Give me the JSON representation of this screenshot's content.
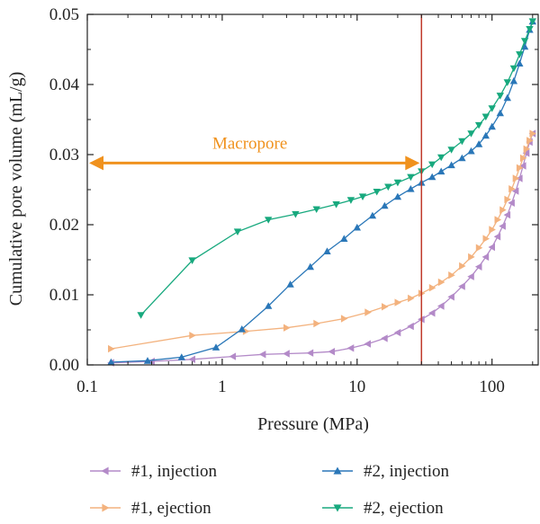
{
  "chart_data": {
    "type": "line",
    "title": "",
    "xlabel": "Pressure (MPa)",
    "ylabel": "Cumulative pore volume (mL/g)",
    "xscale": "log",
    "xlim": [
      0.1,
      220
    ],
    "ylim": [
      0,
      0.05
    ],
    "xticks": [
      0.1,
      1,
      10,
      100
    ],
    "xtick_labels": [
      "0.1",
      "1",
      "10",
      "100"
    ],
    "yticks": [
      0,
      0.01,
      0.02,
      0.03,
      0.04,
      0.05
    ],
    "ytick_labels": [
      "0.00",
      "0.01",
      "0.02",
      "0.03",
      "0.04",
      "0.05"
    ],
    "grid": false,
    "legend_position": "bottom",
    "reference_line": {
      "x": 30,
      "color": "#c0392b"
    },
    "annotation": {
      "text": "Macropore",
      "x_from": 0.1,
      "x_to": 30,
      "y": 0.0288,
      "color": "#f0921e"
    },
    "series": [
      {
        "name": "#1, injection",
        "color": "#b38ac8",
        "marker": "triangle-left",
        "x": [
          0.15,
          0.3,
          0.6,
          1.2,
          2.0,
          3.0,
          4.5,
          6.5,
          9.0,
          12.0,
          16.0,
          20.0,
          25.0,
          30.0,
          36.0,
          42.0,
          50.0,
          60.0,
          70.0,
          80.0,
          90.0,
          100.0,
          110.0,
          120.0,
          130.0,
          140.0,
          150.0,
          160.0,
          170.0,
          180.0,
          190.0,
          200.0
        ],
        "y": [
          0.0003,
          0.0005,
          0.0008,
          0.0012,
          0.0015,
          0.0016,
          0.0017,
          0.0019,
          0.0024,
          0.003,
          0.0038,
          0.0046,
          0.0055,
          0.0065,
          0.0074,
          0.0084,
          0.0097,
          0.0112,
          0.0126,
          0.014,
          0.0154,
          0.0168,
          0.0183,
          0.0198,
          0.0214,
          0.0231,
          0.0248,
          0.0266,
          0.0284,
          0.0302,
          0.0318,
          0.033
        ]
      },
      {
        "name": "#1, ejection",
        "color": "#f3b27e",
        "marker": "triangle-right",
        "x": [
          0.15,
          0.6,
          1.5,
          3.0,
          5.0,
          8.0,
          12.0,
          16.0,
          20.0,
          25.0,
          30.0,
          36.0,
          42.0,
          50.0,
          60.0,
          70.0,
          80.0,
          90.0,
          100.0,
          110.0,
          120.0,
          130.0,
          140.0,
          150.0,
          160.0,
          170.0,
          180.0,
          190.0,
          200.0
        ],
        "y": [
          0.0023,
          0.0042,
          0.0048,
          0.0053,
          0.0059,
          0.0066,
          0.0075,
          0.0083,
          0.0089,
          0.0095,
          0.0102,
          0.011,
          0.0118,
          0.0128,
          0.0141,
          0.0154,
          0.0167,
          0.018,
          0.0193,
          0.0207,
          0.0221,
          0.0236,
          0.0251,
          0.0266,
          0.0281,
          0.0295,
          0.0308,
          0.032,
          0.033
        ]
      },
      {
        "name": "#2, injection",
        "color": "#2a77b8",
        "marker": "triangle-up",
        "x": [
          0.15,
          0.28,
          0.5,
          0.9,
          1.4,
          2.2,
          3.2,
          4.5,
          6.0,
          8.0,
          10.0,
          13.0,
          16.0,
          20.0,
          25.0,
          30.0,
          36.0,
          42.0,
          50.0,
          60.0,
          70.0,
          80.0,
          90.0,
          100.0,
          115.0,
          130.0,
          145.0,
          160.0,
          175.0,
          190.0,
          200.0
        ],
        "y": [
          0.0004,
          0.0006,
          0.0011,
          0.0025,
          0.0051,
          0.0084,
          0.0115,
          0.014,
          0.0162,
          0.018,
          0.0196,
          0.0213,
          0.0227,
          0.024,
          0.0251,
          0.026,
          0.0268,
          0.0276,
          0.0285,
          0.0295,
          0.0305,
          0.0315,
          0.0327,
          0.034,
          0.0359,
          0.0381,
          0.0405,
          0.043,
          0.0454,
          0.0478,
          0.049
        ]
      },
      {
        "name": "#2, ejection",
        "color": "#18a97e",
        "marker": "triangle-down",
        "x": [
          0.25,
          0.6,
          1.3,
          2.2,
          3.5,
          5.0,
          7.0,
          9.0,
          11.0,
          14.0,
          17.0,
          20.0,
          25.0,
          30.0,
          36.0,
          42.0,
          50.0,
          60.0,
          70.0,
          80.0,
          90.0,
          100.0,
          115.0,
          130.0,
          145.0,
          160.0,
          175.0,
          190.0,
          200.0
        ],
        "y": [
          0.0071,
          0.0149,
          0.019,
          0.0207,
          0.0215,
          0.0222,
          0.0229,
          0.0235,
          0.024,
          0.0247,
          0.0254,
          0.026,
          0.0268,
          0.0276,
          0.0286,
          0.0296,
          0.0307,
          0.0319,
          0.033,
          0.0342,
          0.0354,
          0.0366,
          0.0384,
          0.0403,
          0.0423,
          0.0443,
          0.0462,
          0.0479,
          0.049
        ]
      }
    ]
  }
}
